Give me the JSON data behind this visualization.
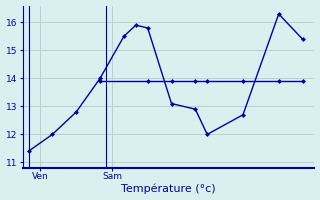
{
  "xlabel": "Température (°c)",
  "bg_color": "#d8f0ee",
  "line_color": "#0000aa",
  "grid_color": "#b8d0ce",
  "axis_color": "#0000aa",
  "tick_color": "#0000aa",
  "ylim": [
    10.8,
    16.6
  ],
  "yticks": [
    11,
    12,
    13,
    14,
    15,
    16
  ],
  "line1_x": [
    0,
    2,
    4,
    6,
    8,
    9,
    10,
    12,
    14,
    15,
    18,
    21,
    23
  ],
  "line1_y": [
    11.4,
    12.0,
    12.8,
    14.0,
    15.5,
    15.9,
    15.8,
    13.1,
    12.9,
    12.0,
    12.7,
    16.3,
    15.4
  ],
  "line2_x": [
    6,
    10,
    12,
    14,
    15,
    18,
    21,
    23
  ],
  "line2_y": [
    13.9,
    13.9,
    13.9,
    13.9,
    13.9,
    13.9,
    13.9,
    13.9
  ],
  "ven_x": 1,
  "sam_x": 7,
  "day_line_x1": 0,
  "day_line_x2": 6.5,
  "xlim": [
    -0.5,
    24
  ]
}
